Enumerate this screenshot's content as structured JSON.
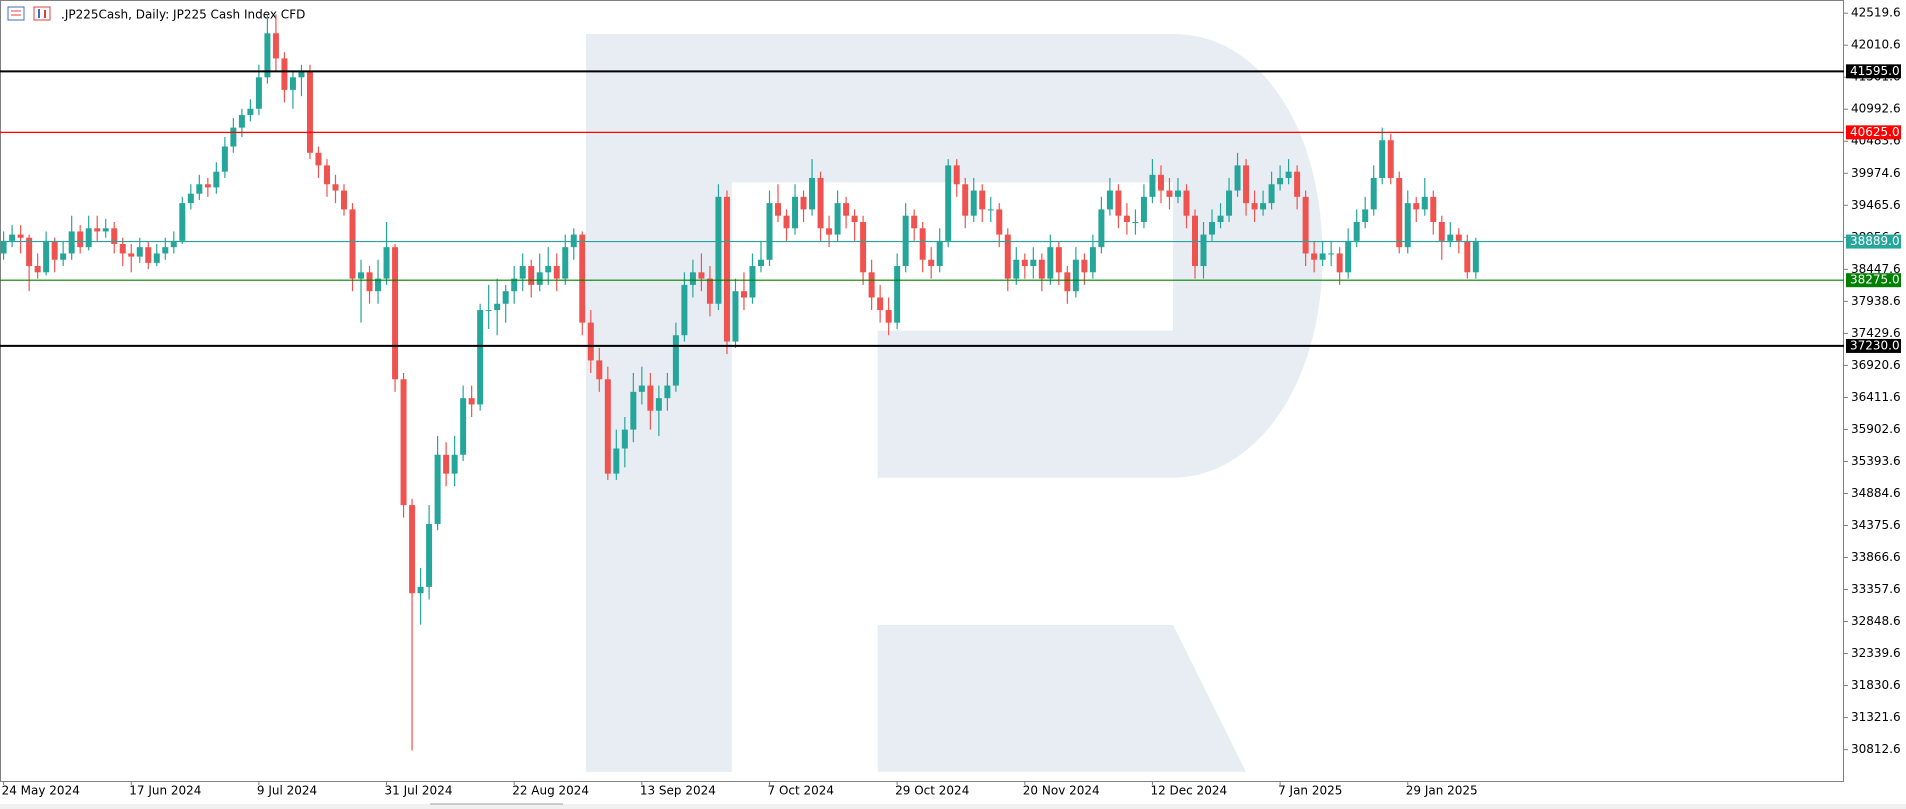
{
  "chart_data": {
    "type": "candlestick",
    "title": ".JP225Cash, Daily:  JP225 Cash Index CFD",
    "up_color": "#26a69a",
    "down_color": "#ef5350",
    "grid": false,
    "ylim": [
      30330,
      42713
    ],
    "yticks": [
      42519.6,
      42010.6,
      41501.6,
      40992.6,
      40483.6,
      39974.6,
      39465.6,
      38956.6,
      38447.6,
      37938.6,
      37429.6,
      36920.6,
      36411.6,
      35902.6,
      35393.6,
      34884.6,
      34375.6,
      33866.6,
      33357.6,
      32848.6,
      32339.6,
      31830.6,
      31321.6,
      30812.6
    ],
    "levels": [
      {
        "value": 41595.0,
        "label": "41595.0",
        "color": "#000000"
      },
      {
        "value": 40625.0,
        "label": "40625.0",
        "color": "#ff0000"
      },
      {
        "value": 38889.0,
        "label": "38889.0",
        "color": "#26a69a"
      },
      {
        "value": 38275.0,
        "label": "38275.0",
        "color": "#008000"
      },
      {
        "value": 37230.0,
        "label": "37230.0",
        "color": "#000000"
      }
    ],
    "categories": [
      "24 May 2024",
      null,
      null,
      null,
      null,
      null,
      null,
      null,
      null,
      null,
      null,
      null,
      null,
      null,
      null,
      "17 Jun 2024",
      null,
      null,
      null,
      null,
      null,
      null,
      null,
      null,
      null,
      null,
      null,
      null,
      null,
      null,
      "9 Jul 2024",
      null,
      null,
      null,
      null,
      null,
      null,
      null,
      null,
      null,
      null,
      null,
      null,
      null,
      null,
      "31 Jul 2024",
      null,
      null,
      null,
      null,
      null,
      null,
      null,
      null,
      null,
      null,
      null,
      null,
      null,
      null,
      "22 Aug 2024",
      null,
      null,
      null,
      null,
      null,
      null,
      null,
      null,
      null,
      null,
      null,
      null,
      null,
      null,
      "13 Sep 2024",
      null,
      null,
      null,
      null,
      null,
      null,
      null,
      null,
      null,
      null,
      null,
      null,
      null,
      null,
      "7 Oct 2024",
      null,
      null,
      null,
      null,
      null,
      null,
      null,
      null,
      null,
      null,
      null,
      null,
      null,
      null,
      "29 Oct 2024",
      null,
      null,
      null,
      null,
      null,
      null,
      null,
      null,
      null,
      null,
      null,
      null,
      null,
      null,
      "20 Nov 2024",
      null,
      null,
      null,
      null,
      null,
      null,
      null,
      null,
      null,
      null,
      null,
      null,
      null,
      null,
      "12 Dec 2024",
      null,
      null,
      null,
      null,
      null,
      null,
      null,
      null,
      null,
      null,
      null,
      null,
      null,
      null,
      "7 Jan 2025",
      null,
      null,
      null,
      null,
      null,
      null,
      null,
      null,
      null,
      null,
      null,
      null,
      null,
      null,
      "29 Jan 2025",
      null,
      null,
      null,
      null,
      null,
      null,
      null,
      null
    ],
    "ohlc": [
      [
        38700,
        39050,
        38600,
        38900
      ],
      [
        38900,
        39150,
        38800,
        39000
      ],
      [
        39000,
        39150,
        38700,
        38950
      ],
      [
        38950,
        39000,
        38100,
        38500
      ],
      [
        38500,
        38700,
        38300,
        38400
      ],
      [
        38400,
        39050,
        38350,
        38900
      ],
      [
        38900,
        38950,
        38400,
        38600
      ],
      [
        38600,
        38900,
        38500,
        38700
      ],
      [
        38700,
        39300,
        38600,
        39050
      ],
      [
        39050,
        39150,
        38700,
        38800
      ],
      [
        38800,
        39300,
        38750,
        39100
      ],
      [
        39100,
        39300,
        38900,
        39050
      ],
      [
        39050,
        39250,
        38950,
        39100
      ],
      [
        39100,
        39200,
        38700,
        38850
      ],
      [
        38850,
        38950,
        38500,
        38700
      ],
      [
        38700,
        38850,
        38400,
        38650
      ],
      [
        38650,
        38950,
        38550,
        38800
      ],
      [
        38800,
        38900,
        38450,
        38550
      ],
      [
        38550,
        38850,
        38500,
        38700
      ],
      [
        38700,
        38950,
        38600,
        38800
      ],
      [
        38800,
        39050,
        38700,
        38900
      ],
      [
        38900,
        39600,
        38850,
        39500
      ],
      [
        39500,
        39800,
        39400,
        39650
      ],
      [
        39650,
        39950,
        39550,
        39800
      ],
      [
        39800,
        39900,
        39600,
        39750
      ],
      [
        39750,
        40150,
        39650,
        40000
      ],
      [
        40000,
        40550,
        39900,
        40400
      ],
      [
        40400,
        40850,
        40300,
        40700
      ],
      [
        40700,
        41000,
        40550,
        40900
      ],
      [
        40900,
        41150,
        40800,
        41000
      ],
      [
        41000,
        41700,
        40900,
        41500
      ],
      [
        41500,
        42500,
        41400,
        42200
      ],
      [
        42200,
        42500,
        41600,
        41800
      ],
      [
        41800,
        41900,
        41100,
        41300
      ],
      [
        41300,
        41600,
        41000,
        41500
      ],
      [
        41500,
        41700,
        41200,
        41600
      ],
      [
        41600,
        41700,
        40200,
        40300
      ],
      [
        40300,
        40400,
        39900,
        40100
      ],
      [
        40100,
        40200,
        39600,
        39800
      ],
      [
        39800,
        39950,
        39500,
        39700
      ],
      [
        39700,
        39800,
        39300,
        39400
      ],
      [
        39400,
        39500,
        38100,
        38300
      ],
      [
        38300,
        38600,
        37600,
        38400
      ],
      [
        38400,
        38500,
        37900,
        38100
      ],
      [
        38100,
        38600,
        37900,
        38300
      ],
      [
        38300,
        39200,
        38200,
        38800
      ],
      [
        38800,
        38850,
        36500,
        36700
      ],
      [
        36700,
        36800,
        34500,
        34700
      ],
      [
        34700,
        34800,
        30800,
        33300
      ],
      [
        33300,
        33700,
        32800,
        33400
      ],
      [
        33400,
        34700,
        33200,
        34400
      ],
      [
        34400,
        35800,
        34300,
        35500
      ],
      [
        35500,
        35700,
        35000,
        35200
      ],
      [
        35200,
        35800,
        35000,
        35500
      ],
      [
        35500,
        36600,
        35400,
        36400
      ],
      [
        36400,
        36600,
        36100,
        36300
      ],
      [
        36300,
        37900,
        36200,
        37800
      ],
      [
        37800,
        38200,
        37500,
        37800
      ],
      [
        37800,
        38300,
        37400,
        37900
      ],
      [
        37900,
        38200,
        37600,
        38100
      ],
      [
        38100,
        38500,
        37900,
        38300
      ],
      [
        38300,
        38700,
        38100,
        38500
      ],
      [
        38500,
        38600,
        38000,
        38200
      ],
      [
        38200,
        38700,
        38100,
        38400
      ],
      [
        38400,
        38800,
        38200,
        38500
      ],
      [
        38500,
        38700,
        38100,
        38300
      ],
      [
        38300,
        39000,
        38200,
        38800
      ],
      [
        38800,
        39100,
        38600,
        39000
      ],
      [
        39000,
        39050,
        37400,
        37600
      ],
      [
        37600,
        37800,
        36800,
        37000
      ],
      [
        37000,
        37200,
        36500,
        36700
      ],
      [
        36700,
        36900,
        35100,
        35200
      ],
      [
        35200,
        35900,
        35100,
        35600
      ],
      [
        35600,
        36100,
        35300,
        35900
      ],
      [
        35900,
        36800,
        35700,
        36500
      ],
      [
        36500,
        36900,
        36300,
        36600
      ],
      [
        36600,
        36800,
        35900,
        36200
      ],
      [
        36200,
        36600,
        35800,
        36400
      ],
      [
        36400,
        36800,
        36200,
        36600
      ],
      [
        36600,
        37600,
        36500,
        37400
      ],
      [
        37400,
        38400,
        37300,
        38200
      ],
      [
        38200,
        38600,
        38000,
        38400
      ],
      [
        38400,
        38700,
        38100,
        38300
      ],
      [
        38300,
        38500,
        37700,
        37900
      ],
      [
        37900,
        39800,
        37800,
        39600
      ],
      [
        39600,
        39700,
        37100,
        37300
      ],
      [
        37300,
        38300,
        37200,
        38100
      ],
      [
        38100,
        38400,
        37800,
        38000
      ],
      [
        38000,
        38700,
        37900,
        38500
      ],
      [
        38500,
        38900,
        38400,
        38600
      ],
      [
        38600,
        39700,
        38500,
        39500
      ],
      [
        39500,
        39800,
        39200,
        39300
      ],
      [
        39300,
        39400,
        38900,
        39100
      ],
      [
        39100,
        39800,
        39000,
        39600
      ],
      [
        39600,
        39700,
        39200,
        39400
      ],
      [
        39400,
        40200,
        39300,
        39900
      ],
      [
        39900,
        40000,
        38900,
        39100
      ],
      [
        39100,
        39300,
        38800,
        39000
      ],
      [
        39000,
        39700,
        38900,
        39500
      ],
      [
        39500,
        39600,
        39100,
        39300
      ],
      [
        39300,
        39400,
        38900,
        39200
      ],
      [
        39200,
        39300,
        38200,
        38400
      ],
      [
        38400,
        38600,
        37800,
        38000
      ],
      [
        38000,
        38200,
        37600,
        37800
      ],
      [
        37800,
        38000,
        37400,
        37600
      ],
      [
        37600,
        38700,
        37500,
        38500
      ],
      [
        38500,
        39500,
        38400,
        39300
      ],
      [
        39300,
        39400,
        38900,
        39100
      ],
      [
        39100,
        39200,
        38400,
        38600
      ],
      [
        38600,
        38800,
        38300,
        38500
      ],
      [
        38500,
        39100,
        38400,
        38900
      ],
      [
        38900,
        40200,
        38800,
        40100
      ],
      [
        40100,
        40200,
        39600,
        39800
      ],
      [
        39800,
        39900,
        39100,
        39300
      ],
      [
        39300,
        39900,
        39200,
        39700
      ],
      [
        39700,
        39800,
        39200,
        39400
      ],
      [
        39400,
        39600,
        39200,
        39400
      ],
      [
        39400,
        39500,
        38800,
        39000
      ],
      [
        39000,
        39100,
        38100,
        38300
      ],
      [
        38300,
        38800,
        38200,
        38600
      ],
      [
        38600,
        38700,
        38300,
        38500
      ],
      [
        38500,
        38800,
        38300,
        38600
      ],
      [
        38600,
        38700,
        38100,
        38300
      ],
      [
        38300,
        39000,
        38200,
        38800
      ],
      [
        38800,
        38900,
        38200,
        38400
      ],
      [
        38400,
        38500,
        37900,
        38100
      ],
      [
        38100,
        38800,
        38000,
        38600
      ],
      [
        38600,
        38700,
        38200,
        38400
      ],
      [
        38400,
        39000,
        38300,
        38800
      ],
      [
        38800,
        39600,
        38700,
        39400
      ],
      [
        39400,
        39900,
        39300,
        39700
      ],
      [
        39700,
        39800,
        39100,
        39300
      ],
      [
        39300,
        39500,
        39000,
        39200
      ],
      [
        39200,
        39400,
        39000,
        39200
      ],
      [
        39200,
        39800,
        39100,
        39600
      ],
      [
        39600,
        40200,
        39500,
        39950
      ],
      [
        39950,
        40100,
        39500,
        39700
      ],
      [
        39700,
        39900,
        39400,
        39600
      ],
      [
        39600,
        39900,
        39500,
        39700
      ],
      [
        39700,
        39800,
        39100,
        39300
      ],
      [
        39300,
        39400,
        38300,
        38500
      ],
      [
        38500,
        39200,
        38300,
        39000
      ],
      [
        39000,
        39400,
        38900,
        39200
      ],
      [
        39200,
        39500,
        39100,
        39300
      ],
      [
        39300,
        39900,
        39200,
        39700
      ],
      [
        39700,
        40300,
        39600,
        40100
      ],
      [
        40100,
        40200,
        39300,
        39500
      ],
      [
        39500,
        39700,
        39200,
        39400
      ],
      [
        39400,
        39700,
        39300,
        39500
      ],
      [
        39500,
        40000,
        39400,
        39800
      ],
      [
        39800,
        40100,
        39700,
        39900
      ],
      [
        39900,
        40200,
        39800,
        40000
      ],
      [
        40000,
        40100,
        39400,
        39600
      ],
      [
        39600,
        39700,
        38500,
        38700
      ],
      [
        38700,
        38900,
        38400,
        38600
      ],
      [
        38600,
        38900,
        38500,
        38700
      ],
      [
        38700,
        38900,
        38500,
        38700
      ],
      [
        38700,
        38800,
        38200,
        38400
      ],
      [
        38400,
        39100,
        38300,
        38900
      ],
      [
        38900,
        39400,
        38800,
        39200
      ],
      [
        39200,
        39600,
        39100,
        39400
      ],
      [
        39400,
        40100,
        39300,
        39900
      ],
      [
        39900,
        40700,
        39800,
        40500
      ],
      [
        40500,
        40600,
        39800,
        39900
      ],
      [
        39900,
        40000,
        38700,
        38800
      ],
      [
        38800,
        39700,
        38700,
        39500
      ],
      [
        39500,
        39600,
        39200,
        39400
      ],
      [
        39400,
        39900,
        39300,
        39600
      ],
      [
        39600,
        39700,
        39000,
        39200
      ],
      [
        39200,
        39300,
        38600,
        38900
      ],
      [
        38900,
        39200,
        38800,
        39000
      ],
      [
        39000,
        39100,
        38700,
        38900
      ],
      [
        38900,
        39000,
        38300,
        38400
      ],
      [
        38400,
        38950,
        38300,
        38889
      ]
    ]
  }
}
